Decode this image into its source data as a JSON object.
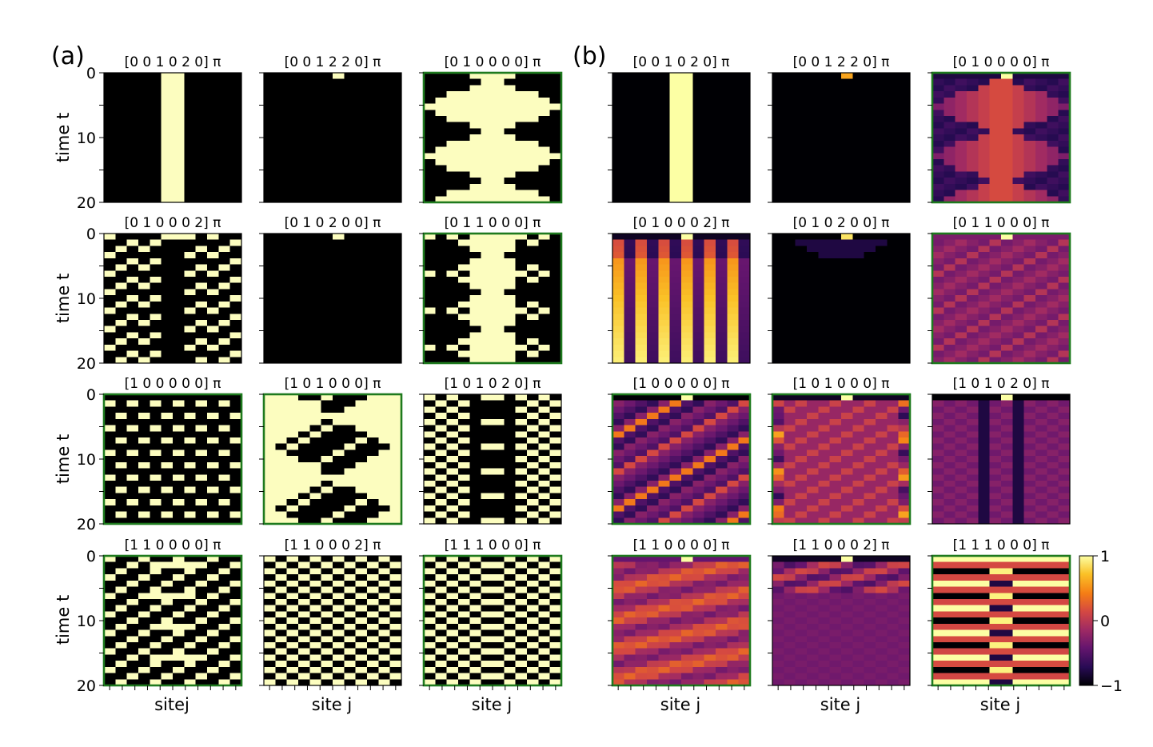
{
  "figure": {
    "panel_labels": [
      "(a)",
      "(b)"
    ],
    "xlabel_left": [
      "sitej",
      "site j",
      "site j"
    ],
    "xlabel_right": [
      "site j",
      "site j",
      "site j"
    ],
    "ylabel": "time t",
    "yticks": [
      "0",
      "10",
      "20"
    ],
    "colorbar_ticks": [
      "1",
      "0",
      "−1"
    ]
  },
  "colors": {
    "on": "#fcfdbf",
    "off": "#000000",
    "highlight_border": "#1e7a1e",
    "colormap": "inferno"
  },
  "chart_data": [
    {
      "type": "heatmap",
      "panel": "(a)",
      "ylabel": "time t",
      "ylim": [
        0,
        20
      ],
      "yticks": [
        0,
        10,
        20
      ],
      "value_range": [
        0,
        1
      ],
      "rows": 21,
      "cols": 12,
      "subplots": [
        {
          "title": "[0 0 1 0 2 0] π",
          "highlighted": false
        },
        {
          "title": "[0 0 1 2 2 0] π",
          "highlighted": false
        },
        {
          "title": "[0 1 0 0 0 0] π",
          "highlighted": true
        },
        {
          "title": "[0 1 0 0 0 2] π",
          "highlighted": false
        },
        {
          "title": "[0 1 0 2 0 0] π",
          "highlighted": false
        },
        {
          "title": "[0 1 1 0 0 0] π",
          "highlighted": true
        },
        {
          "title": "[1 0 0 0 0 0] π",
          "highlighted": true
        },
        {
          "title": "[1 0 1 0 0 0] π",
          "highlighted": true
        },
        {
          "title": "[1 0 1 0 2 0] π",
          "highlighted": false
        },
        {
          "title": "[1 1 0 0 0 0] π",
          "highlighted": true
        },
        {
          "title": "[1 1 0 0 0 2] π",
          "highlighted": false
        },
        {
          "title": "[1 1 1 0 0 0] π",
          "highlighted": true
        }
      ]
    },
    {
      "type": "heatmap",
      "panel": "(b)",
      "ylim": [
        0,
        20
      ],
      "value_range": [
        -1,
        1
      ],
      "colorbar": {
        "ticks": [
          1,
          0,
          -1
        ]
      },
      "rows": 21,
      "cols": 12,
      "subplots": [
        {
          "title": "[0 0 1 0 2 0] π",
          "highlighted": false
        },
        {
          "title": "[0 0 1 2 2 0] π",
          "highlighted": false
        },
        {
          "title": "[0 1 0 0 0 0] π",
          "highlighted": true
        },
        {
          "title": "[0 1 0 0 0 2] π",
          "highlighted": false
        },
        {
          "title": "[0 1 0 2 0 0] π",
          "highlighted": false
        },
        {
          "title": "[0 1 1 0 0 0] π",
          "highlighted": true
        },
        {
          "title": "[1 0 0 0 0 0] π",
          "highlighted": true
        },
        {
          "title": "[1 0 1 0 0 0] π",
          "highlighted": true
        },
        {
          "title": "[1 0 1 0 2 0] π",
          "highlighted": false
        },
        {
          "title": "[1 1 0 0 0 0] π",
          "highlighted": true
        },
        {
          "title": "[1 1 0 0 0 2] π",
          "highlighted": false
        },
        {
          "title": "[1 1 1 0 0 0] π",
          "highlighted": true
        }
      ]
    }
  ]
}
